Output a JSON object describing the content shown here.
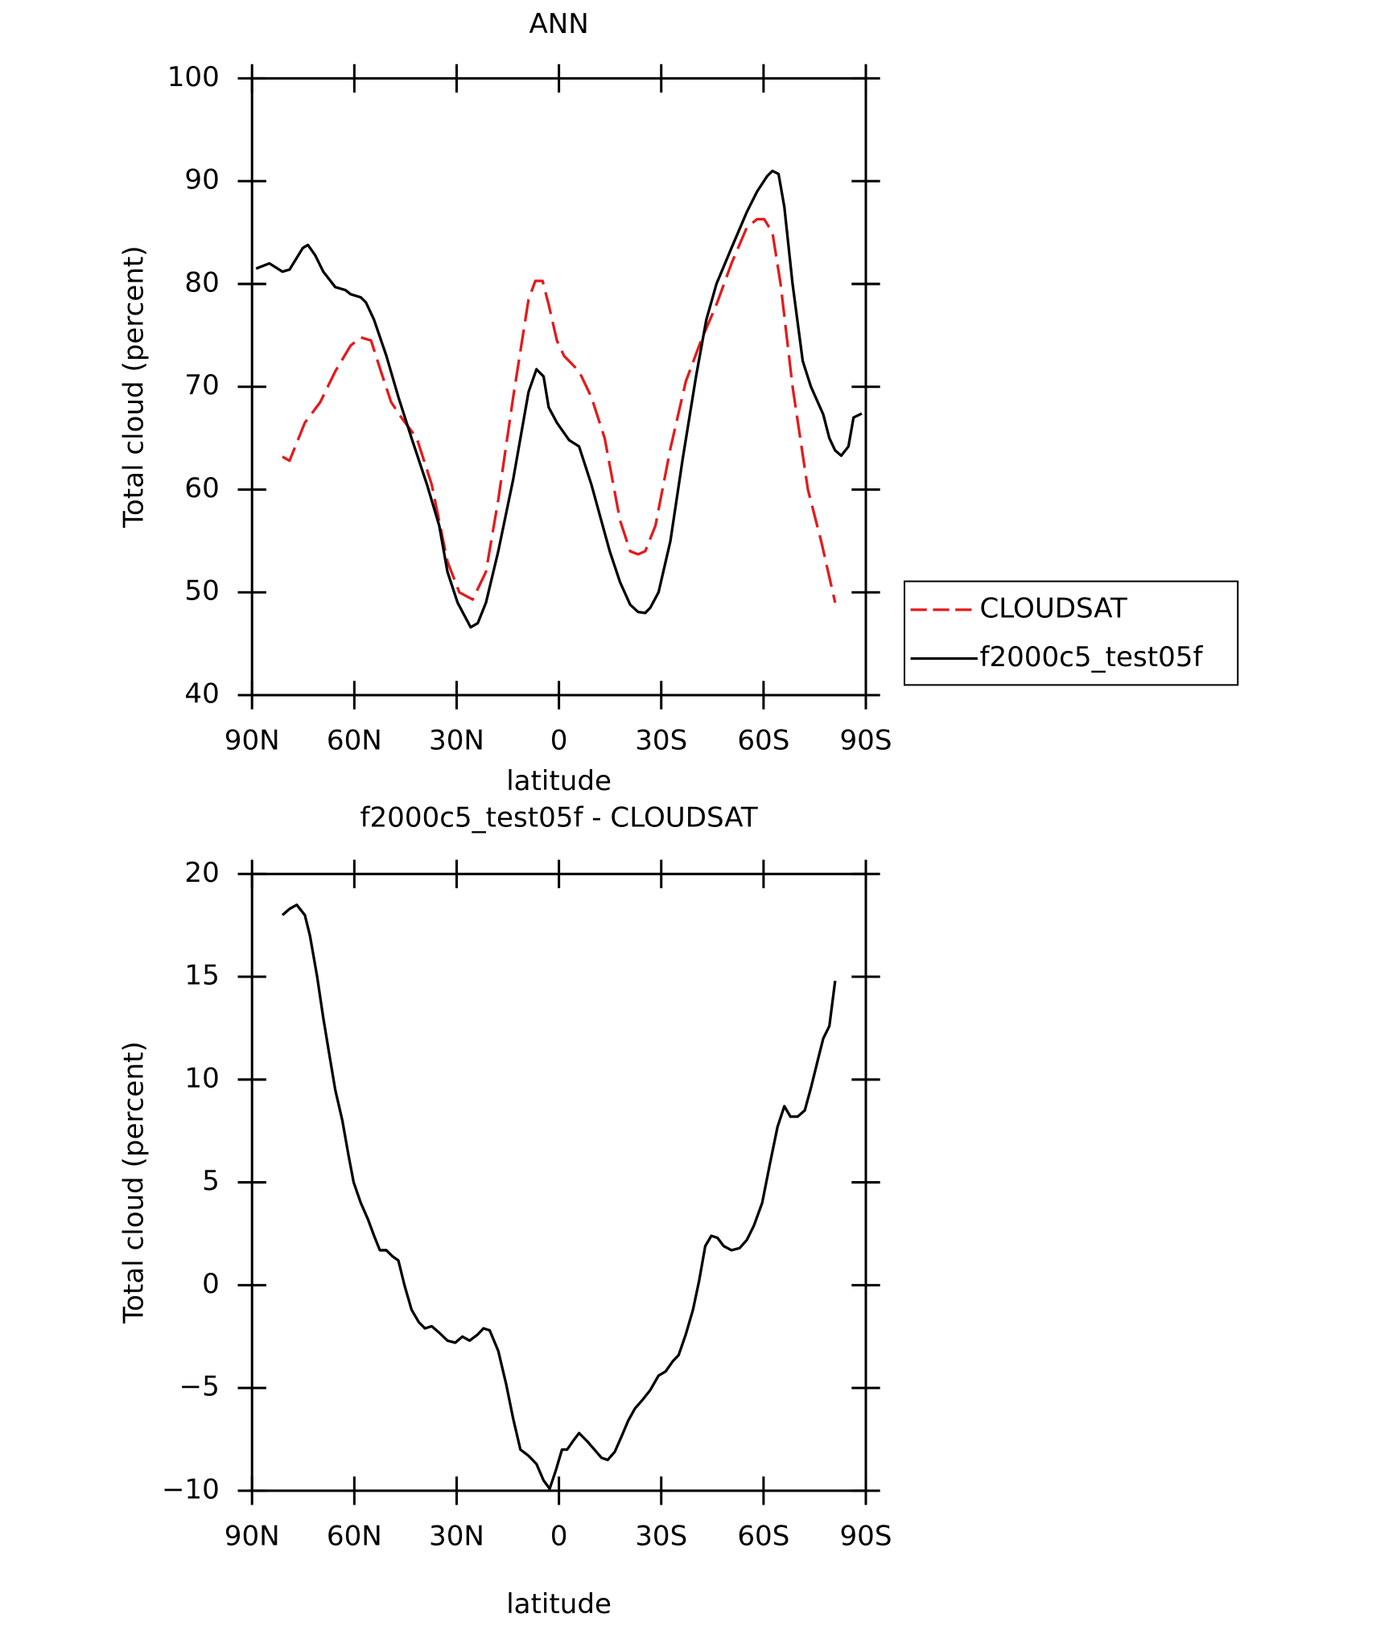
{
  "chart_data": [
    {
      "type": "line",
      "title": "ANN",
      "xlabel": "latitude",
      "ylabel": "Total cloud (percent)",
      "xlim": [
        90,
        -90
      ],
      "xticks": [
        {
          "value": 90,
          "label": "90N"
        },
        {
          "value": 60,
          "label": "60N"
        },
        {
          "value": 30,
          "label": "30N"
        },
        0,
        {
          "value": -30,
          "label": "30S"
        },
        {
          "value": -60,
          "label": "60S"
        },
        {
          "value": -90,
          "label": "90S"
        }
      ],
      "ylim": [
        40,
        100
      ],
      "yticks": [
        40,
        50,
        60,
        70,
        80,
        90,
        100
      ],
      "legend": "right",
      "series": [
        {
          "name": "CLOUDSAT",
          "color": "#e41a1c",
          "dash": true,
          "x": [
            81.1,
            79.0,
            74.5,
            70.0,
            65.6,
            61.1,
            58.1,
            55.1,
            52.2,
            49.2,
            46.2,
            41.7,
            37.3,
            32.7,
            29.2,
            25.3,
            21.4,
            17.8,
            13.4,
            8.9,
            6.9,
            4.8,
            3.0,
            0.6,
            -1.5,
            -5.9,
            -9.5,
            -13.4,
            -17.9,
            -20.9,
            -23.2,
            -25.3,
            -28.3,
            -32.7,
            -37.2,
            -41.7,
            -46.2,
            -50.6,
            -55.1,
            -58.1,
            -60.2,
            -62.6,
            -65.0,
            -68.5,
            -73.0,
            -76.9,
            -81.0
          ],
          "values": [
            63.2,
            62.8,
            66.5,
            68.5,
            71.5,
            74,
            74.8,
            74.5,
            71.5,
            68.5,
            67,
            65,
            60.5,
            53,
            50,
            49.3,
            52,
            59,
            69,
            78.5,
            80.3,
            80.3,
            78,
            74.5,
            73,
            71.5,
            69,
            65,
            57,
            54,
            53.7,
            54,
            56.5,
            64,
            70.5,
            74.5,
            78,
            82,
            85.5,
            86.3,
            86.3,
            85,
            80,
            70,
            60,
            55,
            49
          ]
        },
        {
          "name": "f2000c5_test05f",
          "color": "#000000",
          "dash": false,
          "x": [
            88.8,
            84.9,
            81.1,
            79.0,
            75.1,
            73.6,
            71.5,
            69.1,
            65.6,
            62.6,
            61.1,
            58.1,
            56.6,
            54.2,
            50.6,
            47.1,
            43.2,
            38.7,
            35.1,
            32.7,
            29.7,
            25.9,
            23.8,
            21.4,
            17.8,
            13.4,
            8.9,
            6.6,
            4.5,
            3.0,
            0.6,
            -3.0,
            -5.9,
            -9.5,
            -14.9,
            -17.9,
            -20.9,
            -23.2,
            -25.3,
            -26.8,
            -29.2,
            -32.7,
            -36.3,
            -40.2,
            -43.2,
            -46.2,
            -50.6,
            -55.1,
            -58.1,
            -61.1,
            -62.6,
            -64.4,
            -66.1,
            -68.5,
            -71.5,
            -73.9,
            -77.5,
            -79.3,
            -81.0,
            -82.8,
            -84.9,
            -86.4,
            -88.8
          ],
          "values": [
            81.5,
            82,
            81.2,
            81.4,
            83.5,
            83.8,
            82.8,
            81.2,
            79.7,
            79.4,
            79,
            78.7,
            78.2,
            76.5,
            73,
            69,
            65,
            60.5,
            56.5,
            52,
            49,
            46.6,
            47,
            49,
            54,
            61,
            69.5,
            71.7,
            71,
            68,
            66.5,
            64.8,
            64.2,
            60.5,
            54,
            51,
            48.8,
            48.1,
            48,
            48.5,
            50,
            55,
            63,
            71,
            76.5,
            80,
            83.5,
            87,
            89,
            90.5,
            91,
            90.7,
            87.5,
            80,
            72.5,
            70,
            67.3,
            65,
            63.8,
            63.3,
            64.2,
            67,
            67.4
          ]
        }
      ]
    },
    {
      "type": "line",
      "title": "f2000c5_test05f - CLOUDSAT",
      "xlabel": "latitude",
      "ylabel": "Total cloud (percent)",
      "xlim": [
        90,
        -90
      ],
      "xticks": [
        {
          "value": 90,
          "label": "90N"
        },
        {
          "value": 60,
          "label": "60N"
        },
        {
          "value": 30,
          "label": "30N"
        },
        0,
        {
          "value": -30,
          "label": "30S"
        },
        {
          "value": -60,
          "label": "60S"
        },
        {
          "value": -90,
          "label": "90S"
        }
      ],
      "ylim": [
        -10,
        20
      ],
      "yticks": [
        {
          "value": -10,
          "label": "−10"
        },
        {
          "value": -5,
          "label": "−5"
        },
        0,
        5,
        10,
        15,
        20
      ],
      "series": [
        {
          "color": "#000000",
          "dash": false,
          "x": [
            81.1,
            79.0,
            76.9,
            74.5,
            73.0,
            70.9,
            69.1,
            67.1,
            65.6,
            63.5,
            61.7,
            60.2,
            58.1,
            56.0,
            54.2,
            52.5,
            50.6,
            48.8,
            47.1,
            45.3,
            43.2,
            41.1,
            39.3,
            37.3,
            35.2,
            32.7,
            30.4,
            28.3,
            26.2,
            23.8,
            22.1,
            20.3,
            17.8,
            15.5,
            13.4,
            11.3,
            8.9,
            6.6,
            4.5,
            2.7,
            0.9,
            -0.9,
            -2.4,
            -4.5,
            -5.9,
            -8.3,
            -10.4,
            -12.5,
            -14.3,
            -16.4,
            -18.5,
            -20.3,
            -22.3,
            -24.4,
            -26.8,
            -29.2,
            -31.3,
            -33.4,
            -35.1,
            -37.2,
            -39.3,
            -41.1,
            -42.9,
            -44.7,
            -46.5,
            -48.3,
            -50.6,
            -53.0,
            -55.1,
            -57.2,
            -59.6,
            -62.0,
            -64.1,
            -66.1,
            -67.9,
            -70.0,
            -72.1,
            -73.9,
            -76.0,
            -77.5,
            -79.3,
            -81.0
          ],
          "values": [
            18,
            18.3,
            18.5,
            18,
            17,
            15,
            13,
            11,
            9.5,
            8,
            6.3,
            5,
            4,
            3.2,
            2.4,
            1.7,
            1.7,
            1.4,
            1.2,
            0,
            -1.2,
            -1.8,
            -2.1,
            -2,
            -2.3,
            -2.7,
            -2.8,
            -2.5,
            -2.7,
            -2.4,
            -2.1,
            -2.2,
            -3.2,
            -4.8,
            -6.5,
            -8,
            -8.3,
            -8.7,
            -9.5,
            -9.9,
            -9,
            -8,
            -8,
            -7.5,
            -7.2,
            -7.6,
            -8,
            -8.4,
            -8.5,
            -8.1,
            -7.3,
            -6.6,
            -6,
            -5.6,
            -5.1,
            -4.4,
            -4.2,
            -3.7,
            -3.4,
            -2.4,
            -1.2,
            0.2,
            1.9,
            2.4,
            2.3,
            1.9,
            1.7,
            1.8,
            2.2,
            2.9,
            4,
            6,
            7.7,
            8.7,
            8.2,
            8.2,
            8.5,
            9.6,
            11,
            12,
            12.6,
            14.8
          ]
        }
      ]
    }
  ]
}
